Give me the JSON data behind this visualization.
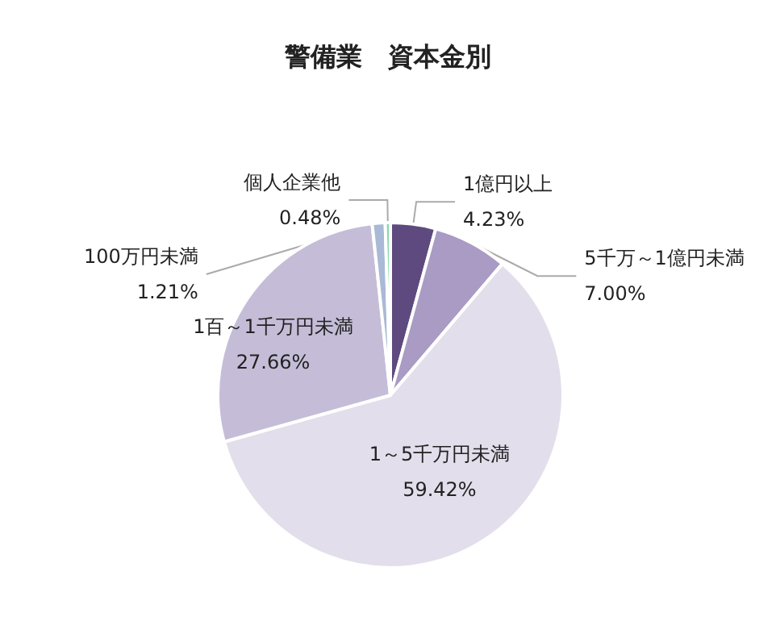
{
  "chart_data": {
    "type": "pie",
    "title": "警備業　資本金別",
    "categories": [
      "1億円以上",
      "5千万～1億円未満",
      "1～5千万円未満",
      "1百～1千万円未満",
      "100万円未満",
      "個人企業他"
    ],
    "values": [
      4.23,
      7.0,
      59.42,
      27.66,
      1.21,
      0.48
    ],
    "value_labels": [
      "4.23%",
      "7.00%",
      "59.42%",
      "27.66%",
      "1.21%",
      "0.48%"
    ],
    "colors": [
      "#5e4a7e",
      "#a99bc4",
      "#e3deeb",
      "#c5bdd7",
      "#a9b9d6",
      "#86d9a6"
    ],
    "legend": false
  }
}
